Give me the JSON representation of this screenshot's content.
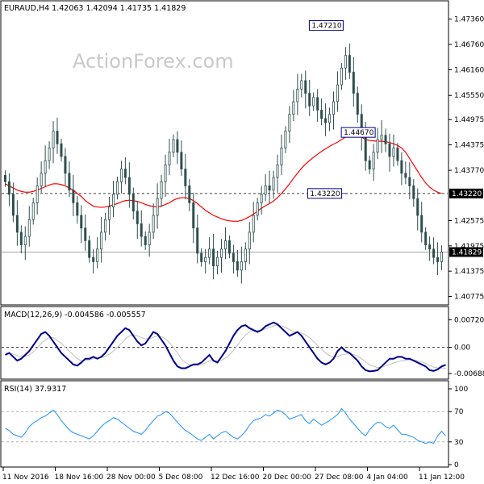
{
  "watermark": "ActionForex.com",
  "main_header": "EURAUD,H4  1.42063 1.42094 1.41735 1.41829",
  "macd_header": "MACD(12,26,9) -0.004586 -0.005557",
  "rsi_header": "RSI(14) 37.9317",
  "annotations": {
    "high": "1.47210",
    "mid": "1.44670",
    "low": "1.43220",
    "hline_label": "1.43220",
    "last_price_label": "1.41829"
  },
  "colors": {
    "candle": "#2f4f4f",
    "ma": "#ff0000",
    "macd_line": "#00008b",
    "macd_signal": "#c0c0c0",
    "rsi": "#1e90ff",
    "annotation_box": "#00008b"
  },
  "chart_data": [
    {
      "type": "candlestick",
      "title": "EURAUD,H4",
      "quote": {
        "open": "1.42063",
        "high": "1.42094",
        "low": "1.41735",
        "close": "1.41829"
      },
      "ylim": [
        1.4065,
        1.477
      ],
      "y_ticks": [
        "1.47360",
        "1.46760",
        "1.46160",
        "1.45550",
        "1.44975",
        "1.44375",
        "1.43770",
        "1.43220",
        "1.42575",
        "1.41975",
        "1.41829",
        "1.41375",
        "1.40775"
      ],
      "x_ticks": [
        "11 Nov 2016",
        "18 Nov 16:00",
        "28 Nov 00:00",
        "5 Dec 08:00",
        "12 Dec 16:00",
        "20 Dec 00:00",
        "27 Dec 08:00",
        "4 Jan 04:00",
        "11 Jan 12:00"
      ],
      "horizontal_lines": [
        1.4322,
        1.41829
      ],
      "close_series": [
        1.435,
        1.432,
        1.427,
        1.423,
        1.42,
        1.422,
        1.426,
        1.43,
        1.434,
        1.437,
        1.44,
        1.443,
        1.447,
        1.444,
        1.441,
        1.437,
        1.433,
        1.43,
        1.427,
        1.424,
        1.421,
        1.417,
        1.416,
        1.419,
        1.423,
        1.426,
        1.429,
        1.432,
        1.435,
        1.438,
        1.436,
        1.432,
        1.428,
        1.425,
        1.422,
        1.42,
        1.423,
        1.427,
        1.431,
        1.435,
        1.439,
        1.442,
        1.445,
        1.442,
        1.438,
        1.434,
        1.43,
        1.424,
        1.418,
        1.416,
        1.417,
        1.419,
        1.415,
        1.417,
        1.419,
        1.421,
        1.418,
        1.416,
        1.414,
        1.416,
        1.419,
        1.423,
        1.427,
        1.43,
        1.432,
        1.434,
        1.433,
        1.436,
        1.439,
        1.443,
        1.447,
        1.451,
        1.454,
        1.457,
        1.459,
        1.456,
        1.453,
        1.455,
        1.452,
        1.45,
        1.449,
        1.451,
        1.454,
        1.458,
        1.462,
        1.465,
        1.461,
        1.456,
        1.451,
        1.446,
        1.44,
        1.438,
        1.442,
        1.445,
        1.446,
        1.444,
        1.441,
        1.443,
        1.44,
        1.437,
        1.436,
        1.434,
        1.431,
        1.427,
        1.423,
        1.42,
        1.419,
        1.417,
        1.416,
        1.4183
      ],
      "series": [
        {
          "name": "MA",
          "values": [
            1.4345,
            1.434,
            1.4335,
            1.433,
            1.4327,
            1.4325,
            1.4325,
            1.4327,
            1.433,
            1.4334,
            1.4338,
            1.4342,
            1.4345,
            1.4345,
            1.4343,
            1.434,
            1.4335,
            1.433,
            1.4322,
            1.4315,
            1.4305,
            1.4298,
            1.4292,
            1.429,
            1.4289,
            1.429,
            1.4292,
            1.4295,
            1.4298,
            1.4302,
            1.4305,
            1.4306,
            1.4305,
            1.4303,
            1.43,
            1.4296,
            1.4293,
            1.4291,
            1.429,
            1.4292,
            1.4296,
            1.43,
            1.4306,
            1.431,
            1.4312,
            1.4312,
            1.431,
            1.4305,
            1.4298,
            1.429,
            1.4282,
            1.4276,
            1.427,
            1.4266,
            1.4262,
            1.4259,
            1.4257,
            1.4256,
            1.4256,
            1.4258,
            1.4262,
            1.4267,
            1.4273,
            1.428,
            1.4287,
            1.4293,
            1.4298,
            1.4304,
            1.4312,
            1.4322,
            1.4333,
            1.4345,
            1.4358,
            1.437,
            1.4382,
            1.4392,
            1.44,
            1.4408,
            1.4415,
            1.4422,
            1.4428,
            1.4434,
            1.4439,
            1.4444,
            1.445,
            1.4456,
            1.446,
            1.4461,
            1.446,
            1.4456,
            1.445,
            1.4448,
            1.4447,
            1.4446,
            1.4446,
            1.4445,
            1.4443,
            1.444,
            1.4436,
            1.443,
            1.442,
            1.4405,
            1.439,
            1.4375,
            1.436,
            1.4347,
            1.4337,
            1.433,
            1.4325,
            1.4322
          ]
        }
      ],
      "annotations": [
        {
          "text": "1.47210",
          "value": 1.4721,
          "index": 84
        },
        {
          "text": "1.44670",
          "value": 1.4467,
          "index": 92
        },
        {
          "text": "1.43220",
          "value": 1.4322,
          "index": 85
        }
      ]
    },
    {
      "type": "line",
      "title": "MACD(12,26,9)",
      "ylim": [
        -0.0075,
        0.0075
      ],
      "y_ticks": [
        "0.007201",
        "0.00",
        "-0.006888"
      ],
      "series": [
        {
          "name": "MACD",
          "values": [
            -0.002,
            -0.0015,
            -0.0025,
            -0.0035,
            -0.003,
            -0.002,
            -0.001,
            0.0005,
            0.002,
            0.0035,
            0.004,
            0.003,
            0.0015,
            0.0,
            -0.0015,
            -0.0025,
            -0.0035,
            -0.0045,
            -0.0048,
            -0.004,
            -0.003,
            -0.003,
            -0.0025,
            -0.003,
            -0.0025,
            -0.0015,
            0.0,
            0.0015,
            0.003,
            0.004,
            0.005,
            0.0045,
            0.003,
            0.0015,
            0.0005,
            0.001,
            0.0025,
            0.004,
            0.0035,
            0.002,
            0.0005,
            -0.0015,
            -0.0035,
            -0.005,
            -0.0055,
            -0.0055,
            -0.005,
            -0.0045,
            -0.0045,
            -0.004,
            -0.003,
            -0.002,
            -0.0035,
            -0.004,
            -0.0025,
            -0.001,
            0.001,
            0.003,
            0.0045,
            0.0055,
            0.0058,
            0.005,
            0.0045,
            0.004,
            0.0045,
            0.0055,
            0.006,
            0.0065,
            0.006,
            0.005,
            0.004,
            0.003,
            0.0035,
            0.004,
            0.003,
            0.0015,
            0.0,
            -0.0015,
            -0.003,
            -0.004,
            -0.0045,
            -0.004,
            -0.003,
            -0.001,
            0.0,
            -0.001,
            -0.0015,
            -0.0025,
            -0.0035,
            -0.005,
            -0.006,
            -0.0063,
            -0.0062,
            -0.006,
            -0.005,
            -0.004,
            -0.003,
            -0.003,
            -0.0025,
            -0.0025,
            -0.003,
            -0.003,
            -0.0035,
            -0.004,
            -0.0045,
            -0.005,
            -0.006,
            -0.0062,
            -0.0058,
            -0.005,
            -0.0046
          ]
        },
        {
          "name": "Signal",
          "values": [
            -0.0015,
            -0.0015,
            -0.0018,
            -0.0022,
            -0.0025,
            -0.0024,
            -0.002,
            -0.0012,
            -0.0002,
            0.001,
            0.002,
            0.0025,
            0.0025,
            0.0018,
            0.001,
            0.0,
            -0.001,
            -0.002,
            -0.003,
            -0.0035,
            -0.0035,
            -0.0033,
            -0.003,
            -0.0028,
            -0.0027,
            -0.0024,
            -0.0018,
            -0.001,
            0.0,
            0.001,
            0.0022,
            0.003,
            0.0033,
            0.003,
            0.0025,
            0.0022,
            0.0022,
            0.0026,
            0.003,
            0.0028,
            0.0022,
            0.0012,
            0.0,
            -0.0015,
            -0.003,
            -0.004,
            -0.0045,
            -0.0047,
            -0.0047,
            -0.0045,
            -0.0041,
            -0.0035,
            -0.0035,
            -0.0036,
            -0.0034,
            -0.0028,
            -0.002,
            -0.0008,
            0.0005,
            0.002,
            0.0032,
            0.004,
            0.0044,
            0.0044,
            0.0045,
            0.0048,
            0.0052,
            0.0056,
            0.0058,
            0.0056,
            0.0052,
            0.0046,
            0.0042,
            0.004,
            0.0037,
            0.0032,
            0.0025,
            0.0015,
            0.0005,
            -0.0005,
            -0.0015,
            -0.0022,
            -0.0025,
            -0.0024,
            -0.002,
            -0.0018,
            -0.0017,
            -0.0019,
            -0.0023,
            -0.003,
            -0.0038,
            -0.0046,
            -0.005,
            -0.0053,
            -0.0052,
            -0.0049,
            -0.0045,
            -0.0041,
            -0.0038,
            -0.0035,
            -0.0034,
            -0.0033,
            -0.0033,
            -0.0035,
            -0.0038,
            -0.0042,
            -0.0047,
            -0.0052,
            -0.0054,
            -0.0054,
            -0.0055
          ]
        }
      ]
    },
    {
      "type": "line",
      "title": "RSI(14)",
      "ylim": [
        0,
        100
      ],
      "y_ticks": [
        "100",
        "70",
        "30",
        "0"
      ],
      "levels": [
        70,
        30
      ],
      "series": [
        {
          "name": "RSI",
          "values": [
            48,
            45,
            40,
            38,
            36,
            42,
            50,
            55,
            58,
            62,
            64,
            68,
            72,
            66,
            58,
            52,
            46,
            42,
            40,
            38,
            36,
            34,
            38,
            44,
            50,
            55,
            58,
            62,
            60,
            56,
            52,
            48,
            44,
            42,
            40,
            45,
            52,
            58,
            64,
            66,
            70,
            68,
            62,
            56,
            50,
            45,
            42,
            38,
            34,
            32,
            36,
            40,
            34,
            38,
            42,
            44,
            40,
            36,
            34,
            38,
            44,
            52,
            58,
            60,
            62,
            66,
            64,
            68,
            72,
            70,
            66,
            60,
            62,
            64,
            66,
            58,
            54,
            60,
            56,
            52,
            55,
            58,
            62,
            66,
            74,
            68,
            60,
            54,
            48,
            42,
            38,
            46,
            52,
            56,
            55,
            50,
            48,
            52,
            46,
            40,
            40,
            38,
            36,
            32,
            30,
            28,
            30,
            28,
            38,
            44,
            38
          ]
        }
      ]
    }
  ]
}
